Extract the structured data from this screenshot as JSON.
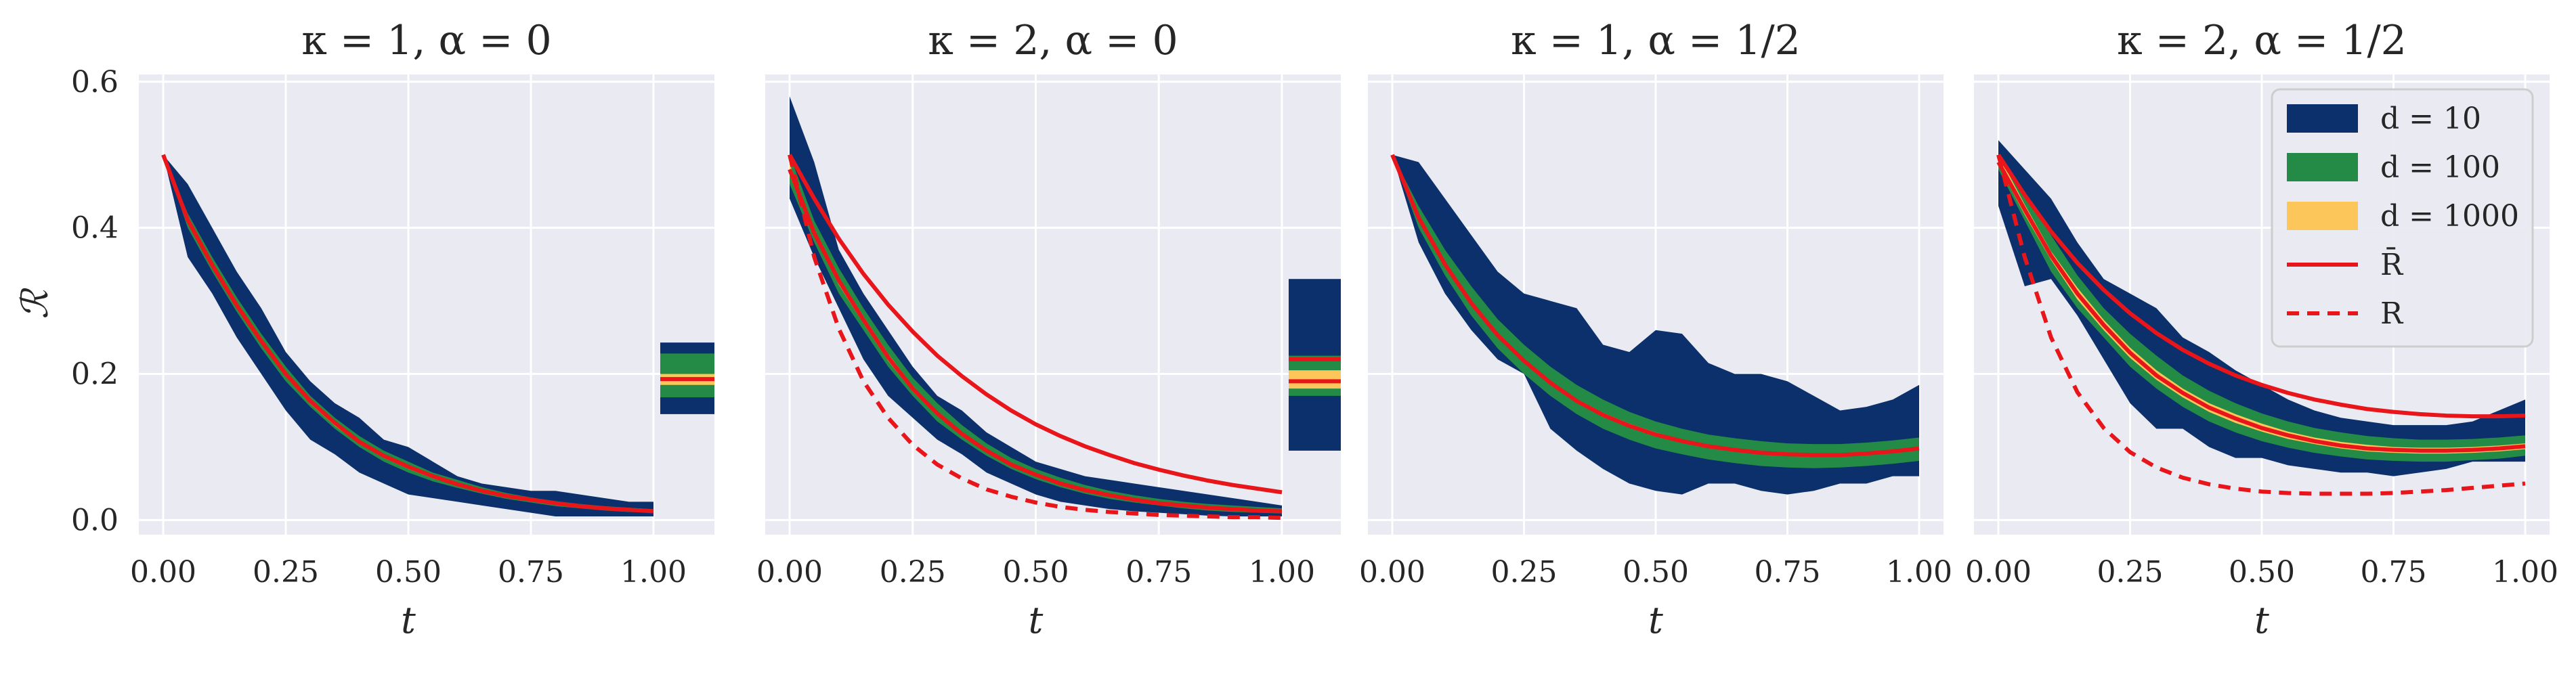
{
  "colors": {
    "d10": "#0b306b",
    "d100": "#238b45",
    "d1000": "#fdc65a",
    "mean_line": "#e8161b",
    "bound_lower": "#e8161b",
    "background": "#eaeaf2",
    "grid": "#ffffff"
  },
  "y_axis_label": "ℛ",
  "y_ticks": [
    "0.0",
    "0.2",
    "0.4",
    "0.6"
  ],
  "x_ticks": [
    "0.00",
    "0.25",
    "0.50",
    "0.75",
    "1.00"
  ],
  "legend": {
    "placement": "top-right of last panel",
    "entries": [
      "d = 10",
      "d = 100",
      "d = 1000",
      "R̄",
      "R"
    ]
  },
  "chart_data": [
    {
      "type": "area",
      "title": "κ = 1,    α = 0",
      "xlabel": "t",
      "ylabel": "ℛ",
      "xlim": [
        0,
        1
      ],
      "ylim": [
        -0.02,
        0.61
      ],
      "has_lower_bound": false,
      "x": [
        0,
        0.05,
        0.1,
        0.15,
        0.2,
        0.25,
        0.3,
        0.35,
        0.4,
        0.45,
        0.5,
        0.55,
        0.6,
        0.65,
        0.7,
        0.75,
        0.8,
        0.85,
        0.9,
        0.95,
        1.0
      ],
      "bands": {
        "d10_upper": [
          0.5,
          0.46,
          0.4,
          0.34,
          0.29,
          0.23,
          0.19,
          0.16,
          0.14,
          0.11,
          0.1,
          0.08,
          0.06,
          0.05,
          0.045,
          0.04,
          0.04,
          0.035,
          0.03,
          0.025,
          0.025
        ],
        "d10_lower": [
          0.5,
          0.36,
          0.31,
          0.25,
          0.2,
          0.15,
          0.11,
          0.09,
          0.065,
          0.05,
          0.035,
          0.03,
          0.025,
          0.02,
          0.015,
          0.01,
          0.005,
          0.005,
          0.005,
          0.005,
          0.005
        ],
        "d100_upper": [
          0.5,
          0.42,
          0.36,
          0.305,
          0.255,
          0.21,
          0.17,
          0.14,
          0.115,
          0.095,
          0.08,
          0.065,
          0.055,
          0.045,
          0.037,
          0.031,
          0.026,
          0.022,
          0.019,
          0.017,
          0.015
        ],
        "d100_lower": [
          0.5,
          0.4,
          0.34,
          0.285,
          0.235,
          0.19,
          0.155,
          0.125,
          0.1,
          0.08,
          0.065,
          0.053,
          0.044,
          0.036,
          0.029,
          0.024,
          0.019,
          0.016,
          0.013,
          0.011,
          0.01
        ],
        "d1000_upper": [
          0.5,
          0.416,
          0.353,
          0.298,
          0.249,
          0.203,
          0.166,
          0.136,
          0.11,
          0.09,
          0.075,
          0.062,
          0.051,
          0.042,
          0.035,
          0.029,
          0.024,
          0.02,
          0.017,
          0.015,
          0.013
        ],
        "d1000_lower": [
          0.5,
          0.406,
          0.345,
          0.29,
          0.241,
          0.196,
          0.159,
          0.129,
          0.104,
          0.085,
          0.07,
          0.057,
          0.047,
          0.038,
          0.031,
          0.026,
          0.021,
          0.018,
          0.015,
          0.013,
          0.011
        ],
        "mean": [
          0.5,
          0.411,
          0.349,
          0.294,
          0.245,
          0.2,
          0.163,
          0.133,
          0.107,
          0.088,
          0.073,
          0.06,
          0.049,
          0.04,
          0.033,
          0.028,
          0.023,
          0.019,
          0.016,
          0.014,
          0.012
        ]
      },
      "side_column": {
        "d10": [
          0.145,
          0.243
        ],
        "d100": [
          0.168,
          0.228
        ],
        "d1000": [
          0.185,
          0.2
        ],
        "mean": 0.193
      }
    },
    {
      "type": "area",
      "title": "κ = 2,    α = 0",
      "xlabel": "t",
      "ylabel": "",
      "xlim": [
        0,
        1
      ],
      "ylim": [
        -0.02,
        0.61
      ],
      "has_lower_bound": true,
      "x": [
        0,
        0.05,
        0.1,
        0.15,
        0.2,
        0.25,
        0.3,
        0.35,
        0.4,
        0.45,
        0.5,
        0.55,
        0.6,
        0.65,
        0.7,
        0.75,
        0.8,
        0.85,
        0.9,
        0.95,
        1.0
      ],
      "bands": {
        "d10_upper": [
          0.58,
          0.49,
          0.37,
          0.31,
          0.26,
          0.21,
          0.17,
          0.15,
          0.12,
          0.1,
          0.08,
          0.07,
          0.06,
          0.055,
          0.05,
          0.045,
          0.04,
          0.035,
          0.03,
          0.025,
          0.02
        ],
        "d10_lower": [
          0.44,
          0.36,
          0.29,
          0.22,
          0.17,
          0.14,
          0.11,
          0.09,
          0.065,
          0.05,
          0.035,
          0.025,
          0.02,
          0.015,
          0.012,
          0.01,
          0.008,
          0.006,
          0.005,
          0.005,
          0.005
        ],
        "d100_upper": [
          0.5,
          0.41,
          0.345,
          0.29,
          0.24,
          0.195,
          0.16,
          0.13,
          0.105,
          0.085,
          0.07,
          0.058,
          0.048,
          0.04,
          0.034,
          0.029,
          0.025,
          0.022,
          0.02,
          0.018,
          0.016
        ],
        "d100_lower": [
          0.46,
          0.38,
          0.31,
          0.26,
          0.21,
          0.17,
          0.135,
          0.11,
          0.088,
          0.07,
          0.056,
          0.045,
          0.036,
          0.029,
          0.024,
          0.02,
          0.016,
          0.013,
          0.011,
          0.01,
          0.009
        ],
        "d1000_upper": [
          0.488,
          0.398,
          0.333,
          0.279,
          0.228,
          0.184,
          0.149,
          0.121,
          0.097,
          0.078,
          0.064,
          0.052,
          0.043,
          0.035,
          0.029,
          0.024,
          0.021,
          0.018,
          0.016,
          0.014,
          0.013
        ],
        "d1000_lower": [
          0.472,
          0.388,
          0.322,
          0.269,
          0.218,
          0.176,
          0.143,
          0.115,
          0.092,
          0.074,
          0.06,
          0.049,
          0.04,
          0.033,
          0.027,
          0.022,
          0.019,
          0.016,
          0.014,
          0.012,
          0.011
        ],
        "mean": [
          0.48,
          0.393,
          0.328,
          0.274,
          0.223,
          0.18,
          0.146,
          0.118,
          0.095,
          0.076,
          0.062,
          0.05,
          0.041,
          0.034,
          0.028,
          0.023,
          0.02,
          0.017,
          0.015,
          0.013,
          0.012
        ],
        "upper_bound": [
          0.5,
          0.44,
          0.385,
          0.337,
          0.295,
          0.258,
          0.225,
          0.197,
          0.172,
          0.15,
          0.131,
          0.115,
          0.101,
          0.089,
          0.078,
          0.069,
          0.061,
          0.054,
          0.048,
          0.043,
          0.038
        ],
        "lower_bound": [
          0.5,
          0.36,
          0.262,
          0.19,
          0.14,
          0.103,
          0.076,
          0.057,
          0.042,
          0.032,
          0.024,
          0.018,
          0.014,
          0.011,
          0.009,
          0.007,
          0.006,
          0.005,
          0.004,
          0.004,
          0.003
        ]
      },
      "side_column": {
        "d10": [
          0.095,
          0.33
        ],
        "d100": [
          0.17,
          0.225
        ],
        "d1000": [
          0.18,
          0.205
        ],
        "mean": 0.19,
        "upper_bound": 0.22
      }
    },
    {
      "type": "area",
      "title": "κ = 1,    α = 1/2",
      "xlabel": "t",
      "ylabel": "",
      "xlim": [
        0,
        1
      ],
      "ylim": [
        -0.02,
        0.61
      ],
      "has_lower_bound": false,
      "x": [
        0,
        0.05,
        0.1,
        0.15,
        0.2,
        0.25,
        0.3,
        0.35,
        0.4,
        0.45,
        0.5,
        0.55,
        0.6,
        0.65,
        0.7,
        0.75,
        0.8,
        0.85,
        0.9,
        0.95,
        1.0
      ],
      "bands": {
        "d10_upper": [
          0.5,
          0.49,
          0.44,
          0.39,
          0.34,
          0.31,
          0.3,
          0.29,
          0.24,
          0.23,
          0.26,
          0.255,
          0.215,
          0.2,
          0.2,
          0.19,
          0.17,
          0.15,
          0.155,
          0.165,
          0.185
        ],
        "d10_lower": [
          0.5,
          0.38,
          0.31,
          0.26,
          0.22,
          0.2,
          0.125,
          0.095,
          0.07,
          0.05,
          0.04,
          0.035,
          0.05,
          0.05,
          0.04,
          0.035,
          0.04,
          0.05,
          0.05,
          0.06,
          0.06
        ],
        "d100_upper": [
          0.5,
          0.43,
          0.37,
          0.32,
          0.275,
          0.24,
          0.21,
          0.185,
          0.165,
          0.148,
          0.135,
          0.125,
          0.117,
          0.112,
          0.108,
          0.105,
          0.104,
          0.104,
          0.106,
          0.109,
          0.113
        ],
        "d100_lower": [
          0.5,
          0.4,
          0.335,
          0.28,
          0.235,
          0.2,
          0.17,
          0.145,
          0.125,
          0.11,
          0.098,
          0.09,
          0.083,
          0.078,
          0.074,
          0.072,
          0.071,
          0.072,
          0.074,
          0.077,
          0.081
        ],
        "d1000_upper": [
          0.5,
          0.418,
          0.354,
          0.301,
          0.256,
          0.221,
          0.191,
          0.166,
          0.147,
          0.132,
          0.12,
          0.11,
          0.103,
          0.098,
          0.094,
          0.092,
          0.091,
          0.091,
          0.093,
          0.096,
          0.1
        ],
        "d1000_lower": [
          0.5,
          0.41,
          0.346,
          0.294,
          0.25,
          0.215,
          0.185,
          0.161,
          0.142,
          0.127,
          0.115,
          0.106,
          0.099,
          0.094,
          0.09,
          0.088,
          0.087,
          0.087,
          0.089,
          0.092,
          0.096
        ],
        "mean": [
          0.5,
          0.414,
          0.35,
          0.297,
          0.253,
          0.218,
          0.188,
          0.163,
          0.144,
          0.129,
          0.117,
          0.108,
          0.101,
          0.096,
          0.092,
          0.09,
          0.089,
          0.089,
          0.091,
          0.094,
          0.098
        ]
      }
    },
    {
      "type": "area",
      "title": "κ = 2,    α = 1/2",
      "xlabel": "t",
      "ylabel": "",
      "xlim": [
        0,
        1
      ],
      "ylim": [
        -0.02,
        0.61
      ],
      "has_lower_bound": true,
      "x": [
        0,
        0.05,
        0.1,
        0.15,
        0.2,
        0.25,
        0.3,
        0.35,
        0.4,
        0.45,
        0.5,
        0.55,
        0.6,
        0.65,
        0.7,
        0.75,
        0.8,
        0.85,
        0.9,
        0.95,
        1.0
      ],
      "bands": {
        "d10_upper": [
          0.52,
          0.48,
          0.44,
          0.38,
          0.33,
          0.31,
          0.29,
          0.25,
          0.23,
          0.205,
          0.185,
          0.165,
          0.15,
          0.14,
          0.135,
          0.13,
          0.13,
          0.13,
          0.135,
          0.15,
          0.165
        ],
        "d10_lower": [
          0.43,
          0.32,
          0.33,
          0.28,
          0.22,
          0.16,
          0.125,
          0.125,
          0.1,
          0.085,
          0.085,
          0.075,
          0.07,
          0.065,
          0.065,
          0.06,
          0.065,
          0.07,
          0.08,
          0.08,
          0.08
        ],
        "d100_upper": [
          0.5,
          0.45,
          0.39,
          0.335,
          0.29,
          0.255,
          0.225,
          0.198,
          0.177,
          0.16,
          0.146,
          0.135,
          0.126,
          0.12,
          0.115,
          0.112,
          0.11,
          0.11,
          0.111,
          0.113,
          0.116
        ],
        "d100_lower": [
          0.48,
          0.41,
          0.34,
          0.29,
          0.25,
          0.21,
          0.18,
          0.155,
          0.135,
          0.12,
          0.108,
          0.099,
          0.092,
          0.087,
          0.083,
          0.081,
          0.08,
          0.08,
          0.082,
          0.084,
          0.088
        ],
        "d1000_upper": [
          0.5,
          0.432,
          0.368,
          0.318,
          0.274,
          0.236,
          0.205,
          0.18,
          0.16,
          0.145,
          0.132,
          0.121,
          0.113,
          0.107,
          0.103,
          0.1,
          0.099,
          0.099,
          0.1,
          0.102,
          0.105
        ],
        "d1000_lower": [
          0.485,
          0.418,
          0.356,
          0.302,
          0.26,
          0.222,
          0.192,
          0.168,
          0.148,
          0.133,
          0.121,
          0.111,
          0.104,
          0.098,
          0.094,
          0.092,
          0.091,
          0.091,
          0.092,
          0.094,
          0.097
        ],
        "mean": [
          0.49,
          0.425,
          0.362,
          0.31,
          0.267,
          0.229,
          0.198,
          0.174,
          0.154,
          0.139,
          0.126,
          0.116,
          0.108,
          0.102,
          0.098,
          0.096,
          0.095,
          0.095,
          0.096,
          0.098,
          0.101
        ],
        "upper_bound": [
          0.5,
          0.445,
          0.395,
          0.352,
          0.315,
          0.283,
          0.256,
          0.233,
          0.214,
          0.198,
          0.185,
          0.174,
          0.165,
          0.158,
          0.152,
          0.148,
          0.145,
          0.143,
          0.142,
          0.142,
          0.143
        ],
        "lower_bound": [
          0.5,
          0.36,
          0.25,
          0.175,
          0.126,
          0.093,
          0.072,
          0.058,
          0.049,
          0.043,
          0.039,
          0.037,
          0.036,
          0.036,
          0.036,
          0.037,
          0.039,
          0.041,
          0.044,
          0.047,
          0.05
        ]
      }
    }
  ]
}
